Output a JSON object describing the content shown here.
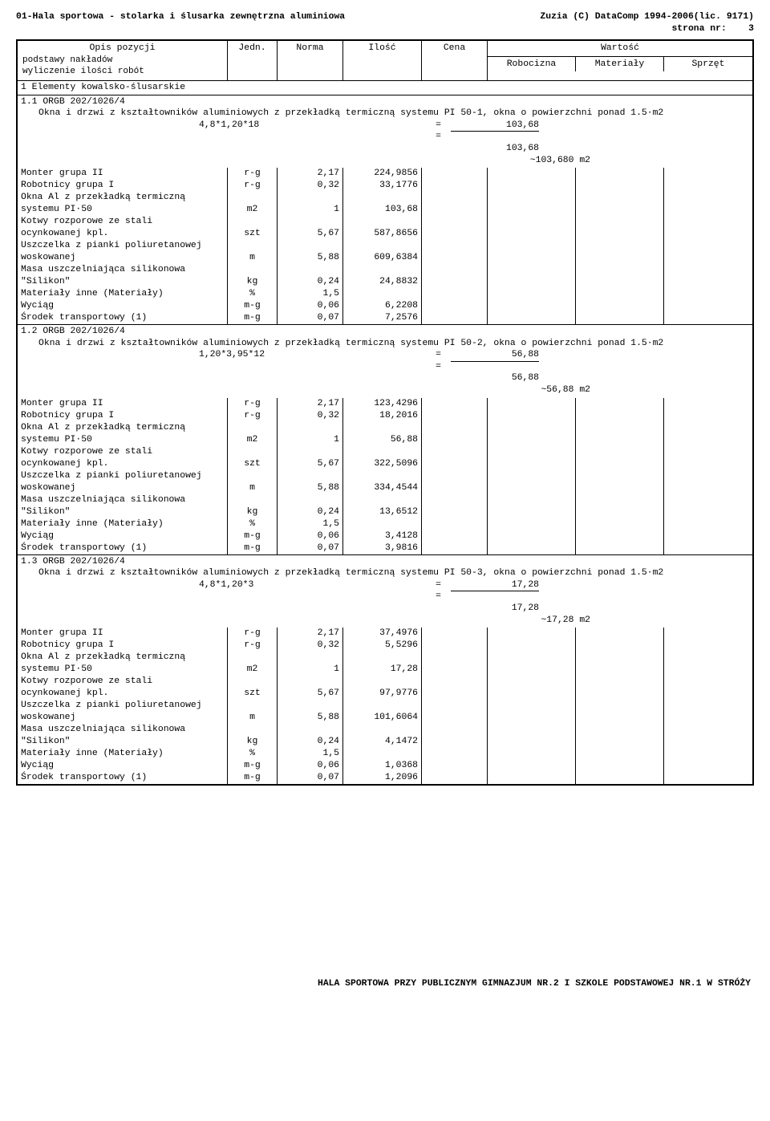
{
  "header": {
    "left": "01-Hala sportowa - stolarka i ślusarka zewnętrzna  aluminiowa",
    "right1": "Zuzia (C) DataComp 1994-2006(lic. 9171)",
    "right2": "strona nr:",
    "page": "3"
  },
  "tableHeader": {
    "opis": "Opis pozycji",
    "opisSub": "podstawy nakładów\nwyliczenie ilości robót",
    "jedn": "Jedn.",
    "norma": "Norma",
    "ilosc": "Ilość",
    "cena": "Cena",
    "wartosc": "Wartość",
    "robocizna": "Robocizna",
    "materialy": "Materiały",
    "sprzet": "Sprzęt"
  },
  "sectionTitle": "1  Elementy kowalsko-ślusarskie",
  "items": [
    {
      "code": "1.1 ORGB 202/1026/4",
      "desc": "Okna i drzwi z kształtowników aluminiowych z przekładką termiczną systemu PI 50-1, okna o powierzchni ponad 1.5·m2",
      "calcExpr": "4,8*1,20*18",
      "calcVal": "103,68",
      "sum": "103,68",
      "approx": "~103,680 m2",
      "rows": [
        {
          "d": "Monter grupa II",
          "u": "r-g",
          "n": "2,17",
          "i": "224,9856"
        },
        {
          "d": "Robotnicy grupa I",
          "u": "r-g",
          "n": "0,32",
          "i": "33,1776"
        },
        {
          "d": "Okna Al z przekładką termiczną\nsystemu PI·50",
          "u": "m2",
          "n": "1",
          "i": "103,68"
        },
        {
          "d": "Kotwy rozporowe ze stali\nocynkowanej kpl.",
          "u": "szt",
          "n": "5,67",
          "i": "587,8656"
        },
        {
          "d": "Uszczelka z pianki poliuretanowej\nwoskowanej",
          "u": "m",
          "n": "5,88",
          "i": "609,6384"
        },
        {
          "d": "Masa uszczelniająca silikonowa\n\"Silikon\"",
          "u": "kg",
          "n": "0,24",
          "i": "24,8832"
        },
        {
          "d": "Materiały inne (Materiały)",
          "u": "%",
          "n": "1,5",
          "i": ""
        },
        {
          "d": "Wyciąg",
          "u": "m-g",
          "n": "0,06",
          "i": "6,2208"
        },
        {
          "d": "Środek transportowy (1)",
          "u": "m-g",
          "n": "0,07",
          "i": "7,2576"
        }
      ]
    },
    {
      "code": "1.2 ORGB 202/1026/4",
      "desc": "Okna i drzwi z kształtowników aluminiowych z przekładką termiczną systemu PI 50-2, okna o powierzchni ponad 1.5·m2",
      "calcExpr": "1,20*3,95*12",
      "calcVal": "56,88",
      "sum": "56,88",
      "approx": "~56,88 m2",
      "rows": [
        {
          "d": "Monter grupa II",
          "u": "r-g",
          "n": "2,17",
          "i": "123,4296"
        },
        {
          "d": "Robotnicy grupa I",
          "u": "r-g",
          "n": "0,32",
          "i": "18,2016"
        },
        {
          "d": "Okna Al z przekładką termiczną\nsystemu PI·50",
          "u": "m2",
          "n": "1",
          "i": "56,88"
        },
        {
          "d": "Kotwy rozporowe ze stali\nocynkowanej kpl.",
          "u": "szt",
          "n": "5,67",
          "i": "322,5096"
        },
        {
          "d": "Uszczelka z pianki poliuretanowej\nwoskowanej",
          "u": "m",
          "n": "5,88",
          "i": "334,4544"
        },
        {
          "d": "Masa uszczelniająca silikonowa\n\"Silikon\"",
          "u": "kg",
          "n": "0,24",
          "i": "13,6512"
        },
        {
          "d": "Materiały inne (Materiały)",
          "u": "%",
          "n": "1,5",
          "i": ""
        },
        {
          "d": "Wyciąg",
          "u": "m-g",
          "n": "0,06",
          "i": "3,4128"
        },
        {
          "d": "Środek transportowy (1)",
          "u": "m-g",
          "n": "0,07",
          "i": "3,9816"
        }
      ]
    },
    {
      "code": "1.3 ORGB 202/1026/4",
      "desc": "Okna i drzwi z kształtowników aluminiowych z przekładką termiczną systemu PI 50-3, okna o powierzchni ponad 1.5·m2",
      "calcExpr": "4,8*1,20*3",
      "calcVal": "17,28",
      "sum": "17,28",
      "approx": "~17,28 m2",
      "rows": [
        {
          "d": "Monter grupa II",
          "u": "r-g",
          "n": "2,17",
          "i": "37,4976"
        },
        {
          "d": "Robotnicy grupa I",
          "u": "r-g",
          "n": "0,32",
          "i": "5,5296"
        },
        {
          "d": "Okna Al z przekładką termiczną\nsystemu PI·50",
          "u": "m2",
          "n": "1",
          "i": "17,28"
        },
        {
          "d": "Kotwy rozporowe ze stali\nocynkowanej kpl.",
          "u": "szt",
          "n": "5,67",
          "i": "97,9776"
        },
        {
          "d": "Uszczelka z pianki poliuretanowej\nwoskowanej",
          "u": "m",
          "n": "5,88",
          "i": "101,6064"
        },
        {
          "d": "Masa uszczelniająca silikonowa\n\"Silikon\"",
          "u": "kg",
          "n": "0,24",
          "i": "4,1472"
        },
        {
          "d": "Materiały inne (Materiały)",
          "u": "%",
          "n": "1,5",
          "i": ""
        },
        {
          "d": "Wyciąg",
          "u": "m-g",
          "n": "0,06",
          "i": "1,0368"
        },
        {
          "d": "Środek transportowy (1)",
          "u": "m-g",
          "n": "0,07",
          "i": "1,2096"
        }
      ]
    }
  ],
  "footer": "HALA SPORTOWA PRZY PUBLICZNYM GIMNAZJUM NR.2 I SZKOLE PODSTAWOWEJ NR.1 W STRÓŻY"
}
